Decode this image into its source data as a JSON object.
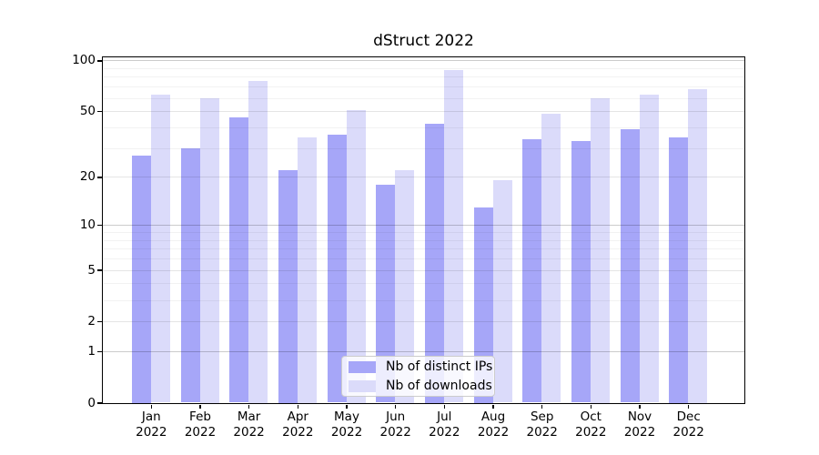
{
  "title": "dStruct 2022",
  "legend": {
    "items": [
      {
        "label": "Nb of distinct IPs",
        "color": "#a6a6f8"
      },
      {
        "label": "Nb of downloads",
        "color": "#dbdbfa"
      }
    ]
  },
  "chart_data": {
    "type": "bar",
    "title": "dStruct 2022",
    "categories": [
      "Jan 2022",
      "Feb 2022",
      "Mar 2022",
      "Apr 2022",
      "May 2022",
      "Jun 2022",
      "Jul 2022",
      "Aug 2022",
      "Sep 2022",
      "Oct 2022",
      "Nov 2022",
      "Dec 2022"
    ],
    "series": [
      {
        "name": "Nb of distinct IPs",
        "color": "#a6a6f8",
        "values": [
          27,
          30,
          46,
          22,
          36,
          18,
          42,
          13,
          34,
          33,
          39,
          35
        ]
      },
      {
        "name": "Nb of downloads",
        "color": "#dbdbfa",
        "values": [
          63,
          60,
          76,
          35,
          51,
          22,
          88,
          19,
          48,
          60,
          63,
          68
        ]
      }
    ],
    "xlabel": "",
    "ylabel": "",
    "yscale": "log1p",
    "ylim": [
      0,
      105
    ],
    "yticks": [
      100,
      50,
      20,
      10,
      5,
      2,
      1,
      0
    ],
    "minor_yticks": [
      3,
      4,
      6,
      7,
      8,
      9,
      30,
      40,
      60,
      70,
      80,
      90
    ],
    "grid": true,
    "legend_position": "lower center"
  }
}
